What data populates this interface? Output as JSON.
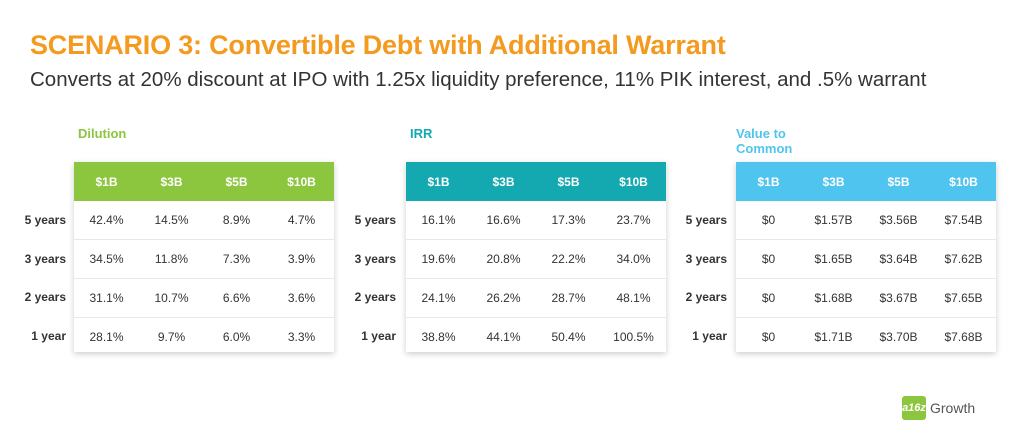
{
  "title": "SCENARIO 3: Convertible Debt with Additional Warrant",
  "subtitle": "Converts at 20% discount at IPO with 1.25x liquidity preference, 11% PIK interest, and .5% warrant",
  "colors": {
    "title": "#f39a1f",
    "dilution": "#8cc63f",
    "irr": "#14a8b0",
    "value": "#4fc4ee"
  },
  "row_labels": [
    "5 years",
    "3 years",
    "2 years",
    "1 year"
  ],
  "column_headers": [
    "$1B",
    "$3B",
    "$5B",
    "$10B"
  ],
  "tables": {
    "dilution": {
      "title": "Dilution",
      "rows": [
        [
          "42.4%",
          "14.5%",
          "8.9%",
          "4.7%"
        ],
        [
          "34.5%",
          "11.8%",
          "7.3%",
          "3.9%"
        ],
        [
          "31.1%",
          "10.7%",
          "6.6%",
          "3.6%"
        ],
        [
          "28.1%",
          "9.7%",
          "6.0%",
          "3.3%"
        ]
      ]
    },
    "irr": {
      "title": "IRR",
      "rows": [
        [
          "16.1%",
          "16.6%",
          "17.3%",
          "23.7%"
        ],
        [
          "19.6%",
          "20.8%",
          "22.2%",
          "34.0%"
        ],
        [
          "24.1%",
          "26.2%",
          "28.7%",
          "48.1%"
        ],
        [
          "38.8%",
          "44.1%",
          "50.4%",
          "100.5%"
        ]
      ]
    },
    "value": {
      "title": "Value to Common",
      "rows": [
        [
          "$0",
          "$1.57B",
          "$3.56B",
          "$7.54B"
        ],
        [
          "$0",
          "$1.65B",
          "$3.64B",
          "$7.62B"
        ],
        [
          "$0",
          "$1.68B",
          "$3.67B",
          "$7.65B"
        ],
        [
          "$0",
          "$1.71B",
          "$3.70B",
          "$7.68B"
        ]
      ]
    }
  },
  "logo": {
    "mark": "a16z",
    "text": "Growth"
  }
}
